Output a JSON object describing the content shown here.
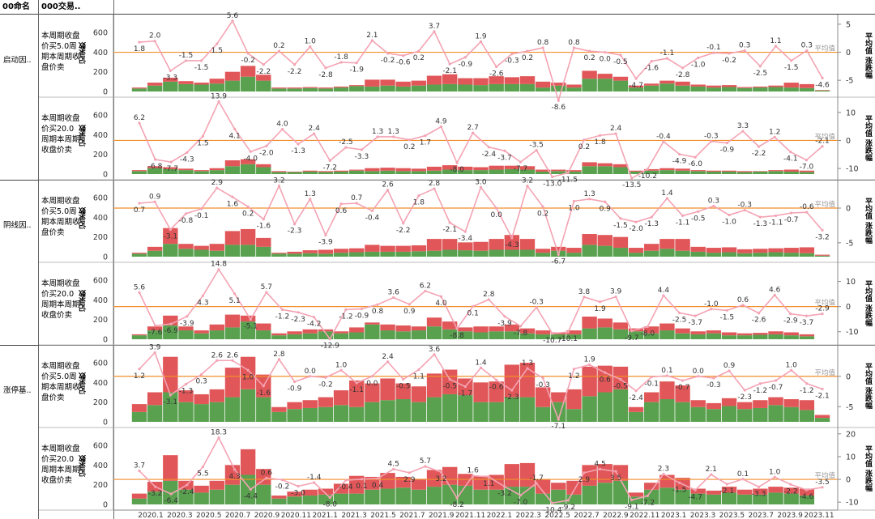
{
  "header": {
    "col1": "00命名",
    "col2": "000交易.."
  },
  "legend_words": {
    "left_axis": "记录数",
    "right_axis": "平均值 涨跌幅",
    "avg_line": "平均值"
  },
  "colors": {
    "green": "#59A14F",
    "red": "#E15759",
    "line": "#F4A3B3",
    "ref": "#F28E2B"
  },
  "chart_data": {
    "type": "bar",
    "x_tick_labels": [
      "2020.1",
      "2020.3",
      "2020.5",
      "2020.7",
      "2020.9",
      "2020.11",
      "2021.1",
      "2021.3",
      "2021.5",
      "2021.7",
      "2021.9",
      "2021.11",
      "2022.1",
      "2022.3",
      "2022.5",
      "2022.7",
      "2022.9",
      "2022.11",
      "2023.1",
      "2023.3",
      "2023.5",
      "2023.7",
      "2023.9",
      "2023.11"
    ],
    "left_ticks": [
      "0",
      "200",
      "400",
      "600"
    ],
    "panels": [
      {
        "group": "启动因..",
        "condition": "本周期收盘价买5.0周期本周期收盘价卖",
        "right_ticks": [
          "5",
          "0",
          "-5"
        ],
        "rmin": -7,
        "rmax": 6,
        "avg": 0,
        "pct": [
          1.8,
          2.0,
          -3.3,
          -1.5,
          -1.5,
          1.5,
          5.6,
          -0.2,
          -2.2,
          0.2,
          -2.2,
          1.0,
          -2.8,
          -1.8,
          -1.9,
          2.1,
          -0.2,
          -0.6,
          0.2,
          3.7,
          -2.1,
          -0.9,
          1.9,
          -2.6,
          -0.3,
          0.2,
          0.8,
          -8.6,
          0.8,
          0.2,
          0.0,
          -0.5,
          -4.7,
          -1.6,
          -1.1,
          -2.8,
          -1.0,
          -0.1,
          -0.2,
          0.3,
          -2.5,
          1.1,
          -1.5,
          0.3,
          -4.6
        ],
        "green": [
          30,
          60,
          100,
          75,
          70,
          80,
          110,
          150,
          110,
          30,
          30,
          35,
          30,
          40,
          55,
          50,
          60,
          50,
          60,
          70,
          75,
          70,
          65,
          75,
          75,
          75,
          40,
          60,
          40,
          130,
          130,
          110,
          40,
          60,
          80,
          60,
          50,
          40,
          45,
          35,
          40,
          45,
          40,
          35,
          10
        ],
        "red": [
          10,
          30,
          40,
          30,
          20,
          50,
          90,
          110,
          60,
          10,
          10,
          10,
          10,
          10,
          10,
          70,
          60,
          50,
          50,
          90,
          100,
          65,
          70,
          80,
          70,
          80,
          60,
          30,
          30,
          80,
          50,
          40,
          20,
          20,
          30,
          40,
          20,
          20,
          20,
          10,
          10,
          15,
          50,
          40,
          5
        ]
      },
      {
        "group": "",
        "condition": "本周期收盘价买20.0周期本周期收盘价卖",
        "right_ticks": [
          "10",
          "0",
          "-10"
        ],
        "rmin": -12,
        "rmax": 14,
        "avg": 0,
        "pct": [
          6.2,
          -6.8,
          -7.7,
          -4.3,
          1.5,
          13.9,
          4.1,
          -4.0,
          -2.0,
          4.0,
          -1.3,
          2.4,
          -7.2,
          -2.5,
          -3.3,
          1.3,
          1.3,
          0.2,
          1.7,
          4.9,
          -8.0,
          2.7,
          -2.4,
          -3.7,
          -7.7,
          -3.5,
          -13.0,
          -11.5,
          0.2,
          1.8,
          2.4,
          -13.5,
          -10.2,
          -0.4,
          -4.9,
          -6.0,
          -0.3,
          -0.9,
          3.3,
          -2.2,
          1.2,
          -4.1,
          -7.0,
          -2.1
        ],
        "green": [
          30,
          60,
          50,
          40,
          30,
          40,
          80,
          100,
          70,
          20,
          20,
          25,
          20,
          25,
          35,
          30,
          35,
          30,
          30,
          35,
          45,
          40,
          40,
          45,
          50,
          45,
          25,
          30,
          25,
          80,
          80,
          70,
          25,
          35,
          40,
          35,
          30,
          25,
          25,
          20,
          25,
          30,
          25,
          20
        ],
        "red": [
          10,
          20,
          20,
          15,
          10,
          20,
          60,
          50,
          30,
          10,
          5,
          10,
          10,
          10,
          10,
          30,
          30,
          30,
          25,
          40,
          45,
          35,
          30,
          40,
          35,
          35,
          20,
          15,
          15,
          40,
          30,
          30,
          10,
          15,
          20,
          20,
          10,
          10,
          10,
          10,
          5,
          10,
          20,
          15
        ]
      },
      {
        "group": "阴线因..",
        "condition": "本周期收盘价买5.0周期本周期收盘价卖",
        "right_ticks": [
          "0",
          "-5"
        ],
        "rmin": -7,
        "rmax": 3.5,
        "avg": 0,
        "pct": [
          0.7,
          0.9,
          -3.1,
          -0.8,
          -0.1,
          2.9,
          1.6,
          0.2,
          -1.6,
          3.2,
          -2.3,
          1.3,
          -3.9,
          0.6,
          0.7,
          -0.4,
          2.6,
          -2.2,
          1.8,
          2.8,
          -2.1,
          -3.4,
          3.0,
          0.0,
          -4.3,
          3.2,
          0.2,
          -6.7,
          1.0,
          1.3,
          0.9,
          -1.5,
          -2.0,
          -1.3,
          1.4,
          -1.1,
          -0.5,
          0.3,
          -1.0,
          -0.3,
          -1.3,
          -1.1,
          -0.7,
          -0.6,
          -3.2
        ],
        "green": [
          30,
          60,
          130,
          80,
          70,
          60,
          120,
          120,
          100,
          30,
          30,
          35,
          30,
          40,
          45,
          50,
          50,
          50,
          55,
          60,
          70,
          65,
          60,
          70,
          70,
          70,
          40,
          60,
          40,
          120,
          110,
          90,
          40,
          60,
          80,
          60,
          50,
          40,
          45,
          35,
          40,
          45,
          40,
          35,
          10
        ],
        "red": [
          10,
          40,
          160,
          50,
          40,
          70,
          140,
          160,
          90,
          10,
          20,
          30,
          40,
          40,
          40,
          70,
          60,
          60,
          60,
          120,
          110,
          80,
          90,
          110,
          150,
          110,
          40,
          40,
          50,
          110,
          110,
          110,
          50,
          70,
          100,
          120,
          50,
          50,
          50,
          40,
          40,
          40,
          50,
          60,
          10
        ]
      },
      {
        "group": "",
        "condition": "本周期收盘价买20.0周期本周期收盘价卖",
        "right_ticks": [
          "10",
          "0",
          "-10"
        ],
        "rmin": -13,
        "rmax": 16,
        "avg": 0,
        "pct": [
          5.6,
          -7.6,
          -6.9,
          -3.9,
          4.3,
          14.8,
          5.1,
          -5.1,
          5.7,
          -1.2,
          -2.3,
          -4.2,
          -12.9,
          -1.2,
          -0.9,
          0.8,
          3.6,
          0.9,
          6.2,
          4.0,
          -8.8,
          0.1,
          2.8,
          -3.9,
          -7.8,
          -0.3,
          -10.7,
          -10.1,
          3.8,
          1.9,
          3.9,
          -9.7,
          -8.0,
          4.4,
          -2.5,
          -3.7,
          -1.0,
          -1.5,
          0.6,
          -2.6,
          4.6,
          -2.9,
          -3.7,
          -2.9
        ],
        "green": [
          40,
          90,
          140,
          90,
          60,
          90,
          120,
          180,
          90,
          40,
          50,
          60,
          80,
          60,
          70,
          150,
          90,
          80,
          90,
          130,
          100,
          80,
          70,
          80,
          80,
          60,
          50,
          50,
          50,
          110,
          120,
          100,
          80,
          60,
          90,
          60,
          50,
          60,
          40,
          40,
          45,
          50,
          40,
          30
        ],
        "red": [
          10,
          40,
          100,
          40,
          30,
          60,
          130,
          60,
          70,
          20,
          30,
          40,
          20,
          20,
          50,
          20,
          60,
          60,
          40,
          90,
          80,
          40,
          60,
          50,
          70,
          50,
          40,
          20,
          40,
          120,
          90,
          70,
          30,
          70,
          70,
          50,
          30,
          30,
          30,
          20,
          20,
          30,
          30,
          20
        ]
      },
      {
        "group": "涨停基..",
        "condition": "本周期收盘价买5.0周期本周期收盘价卖",
        "right_ticks": [
          "0",
          "-5"
        ],
        "rmin": -7.5,
        "rmax": 4.5,
        "avg": 0,
        "pct": [
          1.2,
          3.9,
          -3.1,
          -1.3,
          0.3,
          2.6,
          2.6,
          1.0,
          -1.6,
          2.8,
          -0.9,
          0.0,
          -0.2,
          1.0,
          -1.1,
          -0.0,
          2.4,
          -0.5,
          1.1,
          3.6,
          -0.5,
          -1.7,
          1.4,
          -0.6,
          -2.3,
          1.3,
          -0.3,
          -7.1,
          1.2,
          1.9,
          0.6,
          -0.5,
          -2.4,
          -0.1,
          0.1,
          -0.7,
          0.0,
          -0.3,
          0.9,
          -2.3,
          -1.2,
          -0.7,
          1.0,
          -1.2,
          -2.1
        ],
        "green": [
          100,
          170,
          300,
          200,
          180,
          200,
          250,
          330,
          250,
          100,
          130,
          140,
          150,
          170,
          150,
          200,
          220,
          230,
          200,
          250,
          280,
          270,
          200,
          200,
          250,
          250,
          150,
          200,
          130,
          260,
          300,
          330,
          100,
          200,
          230,
          200,
          150,
          130,
          160,
          130,
          140,
          170,
          150,
          120,
          40
        ],
        "red": [
          80,
          130,
          360,
          120,
          100,
          130,
          300,
          330,
          230,
          50,
          70,
          80,
          100,
          150,
          270,
          190,
          220,
          160,
          160,
          240,
          250,
          170,
          200,
          210,
          330,
          350,
          200,
          100,
          200,
          300,
          270,
          230,
          50,
          100,
          180,
          170,
          70,
          60,
          80,
          70,
          80,
          80,
          80,
          100,
          30
        ]
      },
      {
        "group": "",
        "condition": "本周期收盘价买20.0周期本周期收盘价卖",
        "right_ticks": [
          "20",
          "10",
          "0",
          "-10"
        ],
        "rmin": -11,
        "rmax": 21,
        "avg": 0,
        "pct": [
          3.7,
          -3.2,
          -6.4,
          -2.4,
          5.5,
          18.3,
          4.3,
          -4.4,
          0.6,
          -0.2,
          -3.0,
          -1.4,
          -8.0,
          -0.4,
          0.1,
          0.4,
          4.5,
          2.9,
          5.7,
          3.2,
          -8.2,
          1.6,
          1.1,
          -3.2,
          -7.0,
          -1.7,
          -10.4,
          -9.2,
          2.9,
          4.5,
          3.5,
          -9.1,
          -7.2,
          2.3,
          -1.5,
          -4.7,
          2.1,
          -2.1,
          0.1,
          -3.3,
          1.0,
          -2.2,
          -4.6,
          -3.5
        ],
        "green": [
          60,
          130,
          240,
          150,
          120,
          150,
          200,
          300,
          200,
          60,
          80,
          90,
          100,
          110,
          110,
          150,
          160,
          170,
          150,
          180,
          200,
          190,
          150,
          150,
          180,
          180,
          110,
          150,
          100,
          190,
          220,
          240,
          80,
          150,
          170,
          150,
          110,
          100,
          120,
          100,
          100,
          120,
          110,
          90
        ],
        "red": [
          50,
          100,
          260,
          90,
          70,
          90,
          200,
          260,
          160,
          30,
          50,
          60,
          60,
          100,
          180,
          130,
          160,
          110,
          110,
          170,
          180,
          120,
          140,
          150,
          230,
          240,
          140,
          70,
          140,
          210,
          190,
          160,
          40,
          70,
          130,
          120,
          50,
          40,
          60,
          50,
          60,
          60,
          60,
          70
        ]
      }
    ]
  }
}
